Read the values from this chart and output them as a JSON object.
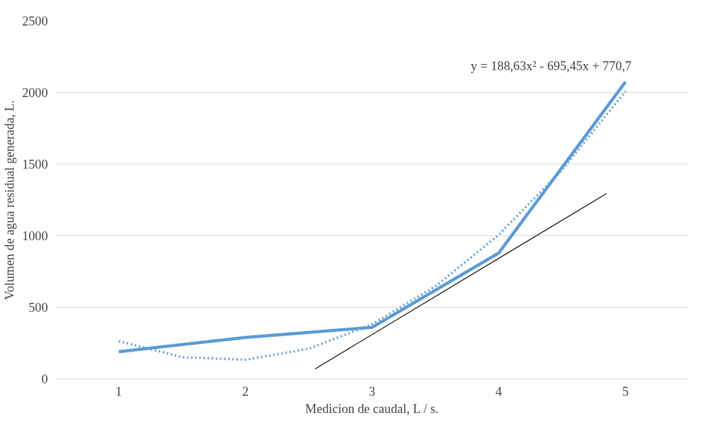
{
  "chart_data": {
    "type": "line",
    "xlabel": "Medicion de caudal, L / s.",
    "ylabel": "Volumen de agua residual generada, L.",
    "x": [
      1,
      2,
      3,
      4,
      5
    ],
    "xlim": [
      0.5,
      5.5
    ],
    "xticks": [
      1,
      2,
      3,
      4,
      5
    ],
    "ylim": [
      0,
      2500
    ],
    "yticks": [
      0,
      500,
      1000,
      1500,
      2000,
      2500
    ],
    "grid": "y",
    "series": [
      {
        "color": "#5b9bd5",
        "values": [
          190,
          290,
          360,
          880,
          2075
        ],
        "line_style": "solid"
      },
      {
        "type": "line",
        "color": "#5b9bd5",
        "x": [
          1,
          1.5,
          2,
          2.5,
          3,
          3.5,
          4,
          4.5,
          5
        ],
        "values": [
          264,
          152,
          134,
          211,
          382,
          647,
          1007,
          1461,
          2009
        ],
        "line_style": "dotted"
      },
      {
        "type": "line",
        "color": "#000000",
        "x": [
          2.55,
          4.85
        ],
        "values": [
          70,
          1295
        ],
        "line_style": "solid"
      }
    ],
    "annotations": [
      "y = 188,63x² - 695,45x + 770,7"
    ]
  }
}
